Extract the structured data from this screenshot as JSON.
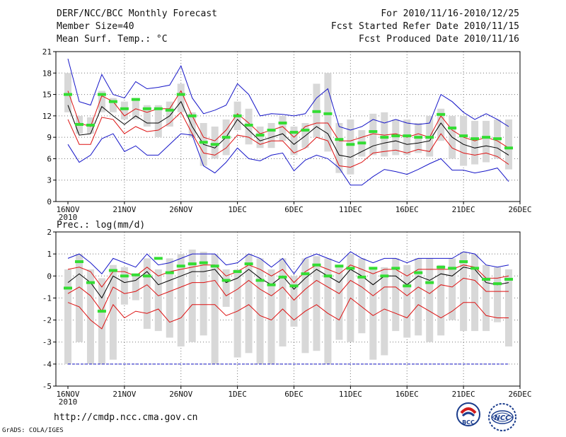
{
  "header": {
    "title": "DERF/NCC/BCC Monthly Forecast",
    "member_size": "Member Size=40",
    "variable": "Mean Surf. Temp.: °C",
    "period": "For 2010/11/16-2010/12/25",
    "started": "Fcst Started Refer Date 2010/11/15",
    "produced": "Fcst Produced Date 2010/11/16"
  },
  "precip_label": "Prec.: log(mm/d)",
  "footer": {
    "url": "http://cmdp.ncc.cma.gov.cn",
    "grads": "GrADS: COLA/IGES",
    "logo1_text": "BCC",
    "logo2_text": "NCC"
  },
  "colors": {
    "max": "#1515c8",
    "mean": "#000000",
    "spread": "#dd1111",
    "median": "#33dd33",
    "box": "#d8d8d8"
  },
  "chart_data": [
    {
      "type": "line",
      "name": "temperature",
      "ylabel": "Mean Surf. Temp.: °C",
      "ylim": [
        0,
        21
      ],
      "yticks": [
        0,
        3,
        6,
        9,
        12,
        15,
        18,
        21
      ],
      "xlim": [
        0,
        40
      ],
      "xticks": [
        {
          "x": 0,
          "label": "16NOV",
          "sub": "2010"
        },
        {
          "x": 5,
          "label": "21NOV"
        },
        {
          "x": 10,
          "label": "26NOV"
        },
        {
          "x": 15,
          "label": "1DEC"
        },
        {
          "x": 20,
          "label": "6DEC"
        },
        {
          "x": 25,
          "label": "11DEC"
        },
        {
          "x": 30,
          "label": "16DEC"
        },
        {
          "x": 35,
          "label": "21DEC"
        },
        {
          "x": 40,
          "label": "26DEC"
        }
      ],
      "grid": true,
      "x": [
        0,
        1,
        2,
        3,
        4,
        5,
        6,
        7,
        8,
        9,
        10,
        11,
        12,
        13,
        14,
        15,
        16,
        17,
        18,
        19,
        20,
        21,
        22,
        23,
        24,
        25,
        26,
        27,
        28,
        29,
        30,
        31,
        32,
        33,
        34,
        35,
        36,
        37,
        38,
        39
      ],
      "series": [
        {
          "name": "max",
          "color": "#1515c8",
          "values": [
            20,
            14,
            13.5,
            17.8,
            15,
            14.5,
            16.8,
            15.8,
            16,
            16.3,
            19,
            14.5,
            12.3,
            12.8,
            13.5,
            16.5,
            15,
            12,
            12.3,
            12.2,
            12,
            12.3,
            14.5,
            15.8,
            10.5,
            10,
            10.5,
            11.5,
            11,
            11.5,
            11,
            10.8,
            11,
            15,
            14,
            12.5,
            11.5,
            12.3,
            11.5,
            10.5
          ]
        },
        {
          "name": "upper",
          "color": "#dd1111",
          "values": [
            15.5,
            11,
            10.5,
            14.8,
            14,
            12,
            13,
            12.5,
            13,
            13,
            15.5,
            12,
            9,
            8.5,
            10,
            12.3,
            11,
            9.5,
            10,
            10.5,
            9,
            10.5,
            11,
            11,
            8.5,
            8.5,
            9,
            9.5,
            9.3,
            9.5,
            9,
            9.5,
            9,
            12,
            10,
            9,
            8.5,
            9,
            8.5,
            7.5
          ]
        },
        {
          "name": "mean",
          "color": "#000000",
          "values": [
            13.5,
            9.3,
            9.5,
            13.3,
            12,
            10.8,
            12,
            11,
            11,
            12,
            14,
            10.5,
            8,
            7.5,
            9,
            11.5,
            10,
            8.5,
            9,
            9.5,
            8,
            9.2,
            10.5,
            9.5,
            6.5,
            6.2,
            7,
            7.8,
            8.2,
            8.5,
            8,
            8.2,
            8.5,
            11,
            9,
            8,
            7.5,
            7.8,
            7.5,
            6.5
          ]
        },
        {
          "name": "lower",
          "color": "#dd1111",
          "values": [
            11.5,
            8,
            8,
            11.8,
            11.5,
            9.5,
            10.5,
            9.8,
            10,
            11,
            12.5,
            9.5,
            6.8,
            6.5,
            7.5,
            9.3,
            9,
            8,
            8.5,
            8.5,
            6.8,
            7.5,
            9,
            8.5,
            5,
            4.8,
            5.5,
            6.8,
            7,
            7.2,
            6.8,
            7.3,
            7,
            9.5,
            7.5,
            6.8,
            6.5,
            6.8,
            6.3,
            5.2
          ]
        },
        {
          "name": "min",
          "color": "#1515c8",
          "values": [
            8,
            5.5,
            6.5,
            8.8,
            9.5,
            7,
            7.8,
            6.5,
            6.5,
            8,
            9.5,
            9.3,
            5,
            4,
            5.5,
            7.5,
            6,
            5.7,
            6.5,
            6.8,
            4.3,
            5.8,
            6.5,
            6,
            4.7,
            2.3,
            2.3,
            3.5,
            4.5,
            4.2,
            3.8,
            4.5,
            5.3,
            6,
            4.4,
            4.4,
            4,
            4.3,
            4.7,
            2.8
          ]
        }
      ],
      "boxes": [
        [
          12.5,
          18
        ],
        [
          9.5,
          12
        ],
        [
          9.5,
          11.8
        ],
        [
          12.5,
          15.5
        ],
        [
          12.5,
          14.5
        ],
        [
          11.5,
          14
        ],
        [
          11.5,
          14.5
        ],
        [
          10.5,
          13.5
        ],
        [
          9,
          13.5
        ],
        [
          10.5,
          14
        ],
        [
          12.5,
          16.5
        ],
        [
          9,
          12.5
        ],
        [
          5,
          11
        ],
        [
          6,
          10.5
        ],
        [
          6.5,
          11.5
        ],
        [
          10,
          14
        ],
        [
          8,
          13
        ],
        [
          7.5,
          10.5
        ],
        [
          7.5,
          11
        ],
        [
          8.5,
          12
        ],
        [
          6.5,
          10.5
        ],
        [
          7.5,
          11
        ],
        [
          9,
          16.5
        ],
        [
          7,
          18
        ],
        [
          4,
          11
        ],
        [
          3.8,
          11.5
        ],
        [
          6.3,
          10
        ],
        [
          6.5,
          12.3
        ],
        [
          6.3,
          12.5
        ],
        [
          6.5,
          11.5
        ],
        [
          6.5,
          11.5
        ],
        [
          6.8,
          11
        ],
        [
          6.3,
          12
        ],
        [
          8.5,
          13
        ],
        [
          6,
          12
        ],
        [
          5,
          12
        ],
        [
          5.2,
          11.3
        ],
        [
          5.5,
          11.3
        ],
        [
          6,
          11.5
        ],
        [
          4.5,
          11.5
        ]
      ],
      "medians": [
        15,
        10.8,
        10.7,
        15,
        14,
        13,
        14.3,
        13,
        13,
        12.8,
        15,
        12,
        8.3,
        8,
        9,
        12,
        10.7,
        9.3,
        10,
        11,
        9.7,
        10,
        12.6,
        12.3,
        8.7,
        8,
        8.2,
        9.8,
        9,
        9.2,
        9.2,
        9,
        9,
        12.2,
        10.3,
        9.2,
        8.8,
        9,
        8.8,
        7.5
      ]
    },
    {
      "type": "line",
      "name": "precipitation",
      "ylabel": "Prec.: log(mm/d)",
      "ylim": [
        -5,
        2
      ],
      "yticks": [
        -5,
        -4,
        -3,
        -2,
        -1,
        0,
        1,
        2
      ],
      "xlim": [
        0,
        40
      ],
      "xticks": [
        {
          "x": 0,
          "label": "16NOV",
          "sub": "2010"
        },
        {
          "x": 5,
          "label": "21NOV"
        },
        {
          "x": 10,
          "label": "26NOV"
        },
        {
          "x": 15,
          "label": "1DEC"
        },
        {
          "x": 20,
          "label": "6DEC"
        },
        {
          "x": 25,
          "label": "11DEC"
        },
        {
          "x": 30,
          "label": "16DEC"
        },
        {
          "x": 35,
          "label": "21DEC"
        },
        {
          "x": 40,
          "label": "26DEC"
        }
      ],
      "grid": true,
      "x": [
        0,
        1,
        2,
        3,
        4,
        5,
        6,
        7,
        8,
        9,
        10,
        11,
        12,
        13,
        14,
        15,
        16,
        17,
        18,
        19,
        20,
        21,
        22,
        23,
        24,
        25,
        26,
        27,
        28,
        29,
        30,
        31,
        32,
        33,
        34,
        35,
        36,
        37,
        38,
        39
      ],
      "series": [
        {
          "name": "max",
          "color": "#1515c8",
          "values": [
            0.8,
            1,
            0.6,
            0.1,
            0.8,
            0.6,
            0.4,
            1,
            0.5,
            0.6,
            0.8,
            1,
            1,
            1,
            0.5,
            0.6,
            1,
            0.8,
            0.4,
            0.8,
            0.1,
            0.8,
            1,
            0.8,
            0.6,
            1.1,
            0.8,
            0.6,
            0.8,
            0.8,
            0.6,
            0.8,
            0.8,
            0.8,
            0.8,
            1.1,
            1,
            0.5,
            0.4,
            0.5
          ]
        },
        {
          "name": "upper",
          "color": "#dd1111",
          "values": [
            0.3,
            0.4,
            0.2,
            -0.5,
            0.2,
            0.2,
            0,
            0.4,
            0,
            0.2,
            0.3,
            0.4,
            0.5,
            0.5,
            0,
            0.2,
            0.5,
            0.3,
            0,
            0.3,
            -0.3,
            0.2,
            0.5,
            0.3,
            0.1,
            0.5,
            0.3,
            0.1,
            0.3,
            0.3,
            0,
            0.3,
            0.3,
            0.3,
            0.3,
            0.5,
            0.4,
            -0.1,
            -0.1,
            0
          ]
        },
        {
          "name": "mean",
          "color": "#000000",
          "values": [
            -0.3,
            0.1,
            -0.3,
            -1,
            0,
            -0.3,
            -0.2,
            0.2,
            -0.4,
            -0.2,
            0,
            0.2,
            0.2,
            0.3,
            -0.3,
            -0.1,
            0.3,
            -0.1,
            -0.4,
            0,
            -0.6,
            -0.1,
            0.3,
            0,
            -0.3,
            0.3,
            0,
            -0.4,
            0,
            0,
            -0.4,
            0,
            -0.2,
            0.1,
            0,
            0.4,
            0.3,
            -0.3,
            -0.4,
            -0.3
          ]
        },
        {
          "name": "lower",
          "color": "#dd1111",
          "values": [
            -0.8,
            -0.5,
            -0.9,
            -1.6,
            -0.5,
            -0.8,
            -0.7,
            -0.4,
            -0.9,
            -0.7,
            -0.5,
            -0.3,
            -0.3,
            -0.2,
            -0.9,
            -0.6,
            -0.2,
            -0.6,
            -0.9,
            -0.5,
            -1.1,
            -0.6,
            -0.2,
            -0.5,
            -0.8,
            -0.2,
            -0.5,
            -0.9,
            -0.5,
            -0.5,
            -0.9,
            -0.5,
            -0.8,
            -0.4,
            -0.5,
            -0.1,
            -0.2,
            -0.7,
            -0.7,
            -0.7
          ]
        },
        {
          "name": "min",
          "color": "#dd1111",
          "values": [
            -1.2,
            -1.4,
            -2,
            -2.4,
            -1.3,
            -1.9,
            -1.6,
            -1.7,
            -1.5,
            -2.1,
            -1.9,
            -1.3,
            -1.3,
            -1.3,
            -1.8,
            -1.6,
            -1.3,
            -1.8,
            -2,
            -1.5,
            -2,
            -1.6,
            -1.3,
            -1.7,
            -2,
            -1,
            -1.4,
            -1.8,
            -1.5,
            -1.7,
            -1.9,
            -1.3,
            -1.6,
            -1.9,
            -1.6,
            -1.2,
            -1.2,
            -1.8,
            -1.9,
            -1.9
          ]
        }
      ],
      "floor": -4,
      "boxes": [
        [
          -4,
          0.3
        ],
        [
          -3,
          1
        ],
        [
          -4,
          0.3
        ],
        [
          -4,
          -0.1
        ],
        [
          -3.8,
          0.5
        ],
        [
          -1.3,
          0.4
        ],
        [
          -1.1,
          0.1
        ],
        [
          -2.4,
          0.8
        ],
        [
          -2.5,
          0.3
        ],
        [
          -2.8,
          0.8
        ],
        [
          -3.2,
          1
        ],
        [
          -3,
          1.2
        ],
        [
          -2.7,
          1.1
        ],
        [
          -4,
          1
        ],
        [
          -1.4,
          0.3
        ],
        [
          -3.7,
          0.3
        ],
        [
          -3.5,
          1
        ],
        [
          -4,
          0.8
        ],
        [
          -4,
          0.3
        ],
        [
          -3.2,
          0.8
        ],
        [
          -2.3,
          0
        ],
        [
          -3.5,
          0.8
        ],
        [
          -3.4,
          0.9
        ],
        [
          -4,
          0.8
        ],
        [
          -2.9,
          0.5
        ],
        [
          -3,
          1
        ],
        [
          -2.6,
          0.8
        ],
        [
          -3.8,
          0.3
        ],
        [
          -3.6,
          0.4
        ],
        [
          -2.5,
          0.8
        ],
        [
          -2.8,
          0.5
        ],
        [
          -2.7,
          0.8
        ],
        [
          -3,
          0.8
        ],
        [
          -2.7,
          0.5
        ],
        [
          -2,
          0.8
        ],
        [
          -2.5,
          1.1
        ],
        [
          -2.5,
          1
        ],
        [
          -2.5,
          0.5
        ],
        [
          -2.1,
          0.4
        ],
        [
          -3.2,
          0.3
        ]
      ],
      "medians": [
        -0.55,
        0.65,
        -0.3,
        -1.6,
        0.25,
        0,
        0.05,
        0,
        0.8,
        0.15,
        0.45,
        0.55,
        0.6,
        0.45,
        -0.2,
        0.2,
        0.55,
        -0.2,
        -0.4,
        -0.05,
        -0.45,
        0.1,
        0.5,
        0,
        0.45,
        0.35,
        -0.05,
        0.35,
        0,
        0.35,
        -0.45,
        0.15,
        -0.3,
        0.4,
        0.35,
        0.65,
        0.35,
        -0.15,
        -0.35,
        -0.15
      ]
    }
  ]
}
